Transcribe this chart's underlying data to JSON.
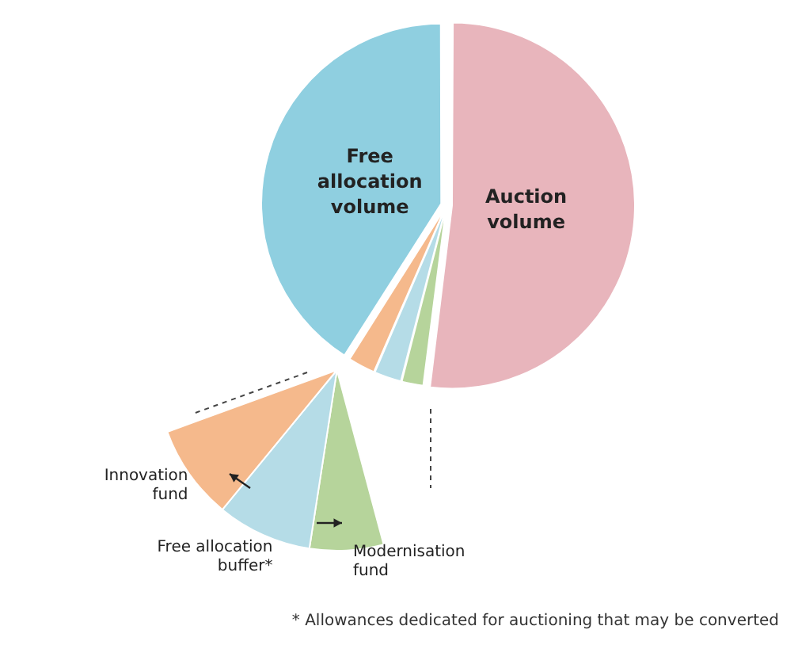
{
  "chart_data": [
    {
      "type": "pie",
      "categories": [
        "Auction volume",
        null,
        null,
        null,
        "Free allocation volume"
      ],
      "values": [
        52,
        2,
        2.5,
        2.5,
        41
      ],
      "colors": [
        "#e8b5bc",
        "#b6d49b",
        "#b5dce7",
        "#f5b98c",
        "#8fcfe0"
      ],
      "legend": false,
      "annotations": [
        "* Allowances dedicated for auctioning that may be converted"
      ]
    },
    {
      "type": "pie",
      "categories": [
        "Modernisation fund",
        "Free allocation buffer*",
        "Innovation fund"
      ],
      "values": [
        28,
        36,
        36
      ],
      "colors": [
        "#b6d49b",
        "#b5dce7",
        "#f5b98c"
      ]
    }
  ]
}
